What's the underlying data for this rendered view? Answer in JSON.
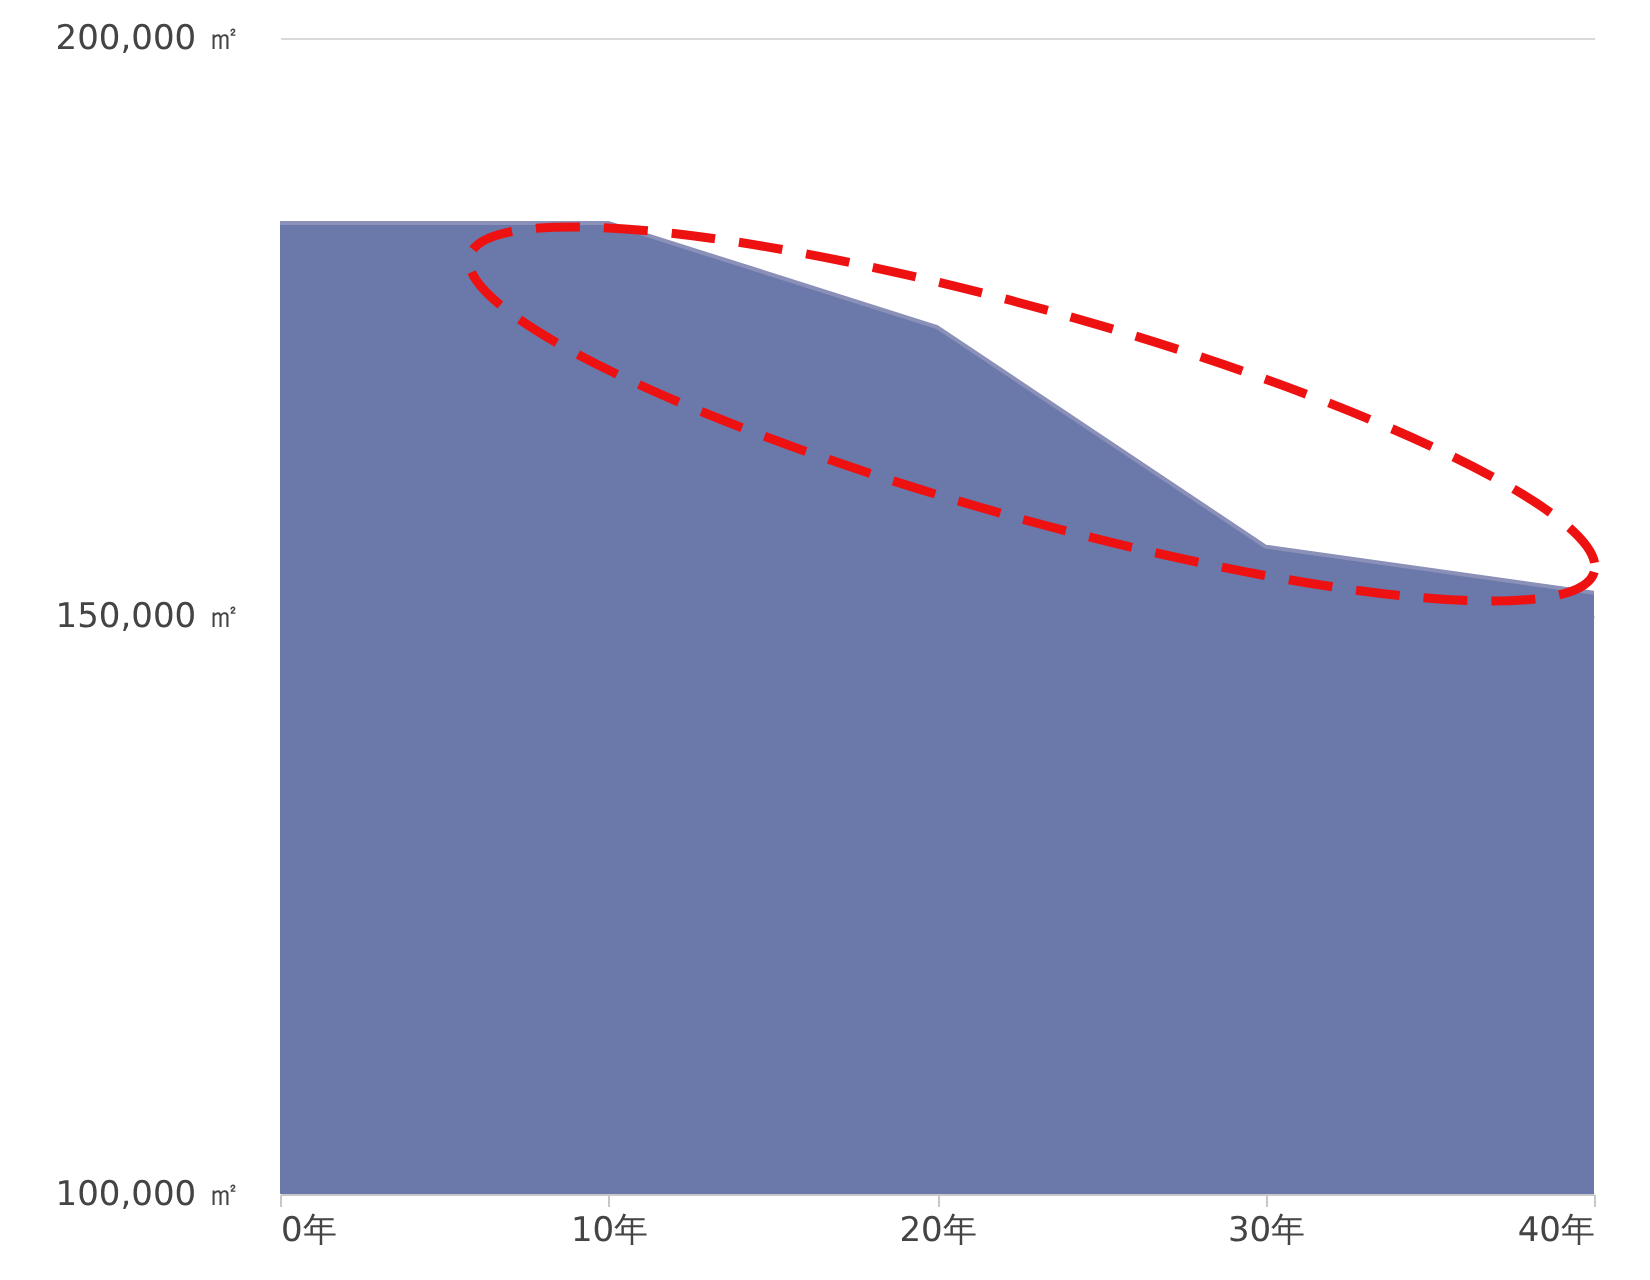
{
  "chart_data": {
    "type": "area",
    "x": [
      0,
      10,
      20,
      30,
      40
    ],
    "series": [
      {
        "color": "#6b79aa",
        "values": [
          184000,
          184000,
          175000,
          156000,
          152000
        ]
      }
    ],
    "xlim": [
      0,
      40
    ],
    "xticks": [
      {
        "value": 0,
        "label": "0年"
      },
      {
        "value": 10,
        "label": "10年"
      },
      {
        "value": 20,
        "label": "20年"
      },
      {
        "value": 30,
        "label": "30年"
      },
      {
        "value": 40,
        "label": "40年"
      }
    ],
    "ylim": [
      100000,
      200000
    ],
    "yticks": [
      {
        "value": 100000,
        "label": "100,000 ㎡"
      },
      {
        "value": 150000,
        "label": "150,000 ㎡"
      },
      {
        "value": 200000,
        "label": "200,000 ㎡"
      }
    ],
    "grid": "y"
  }
}
